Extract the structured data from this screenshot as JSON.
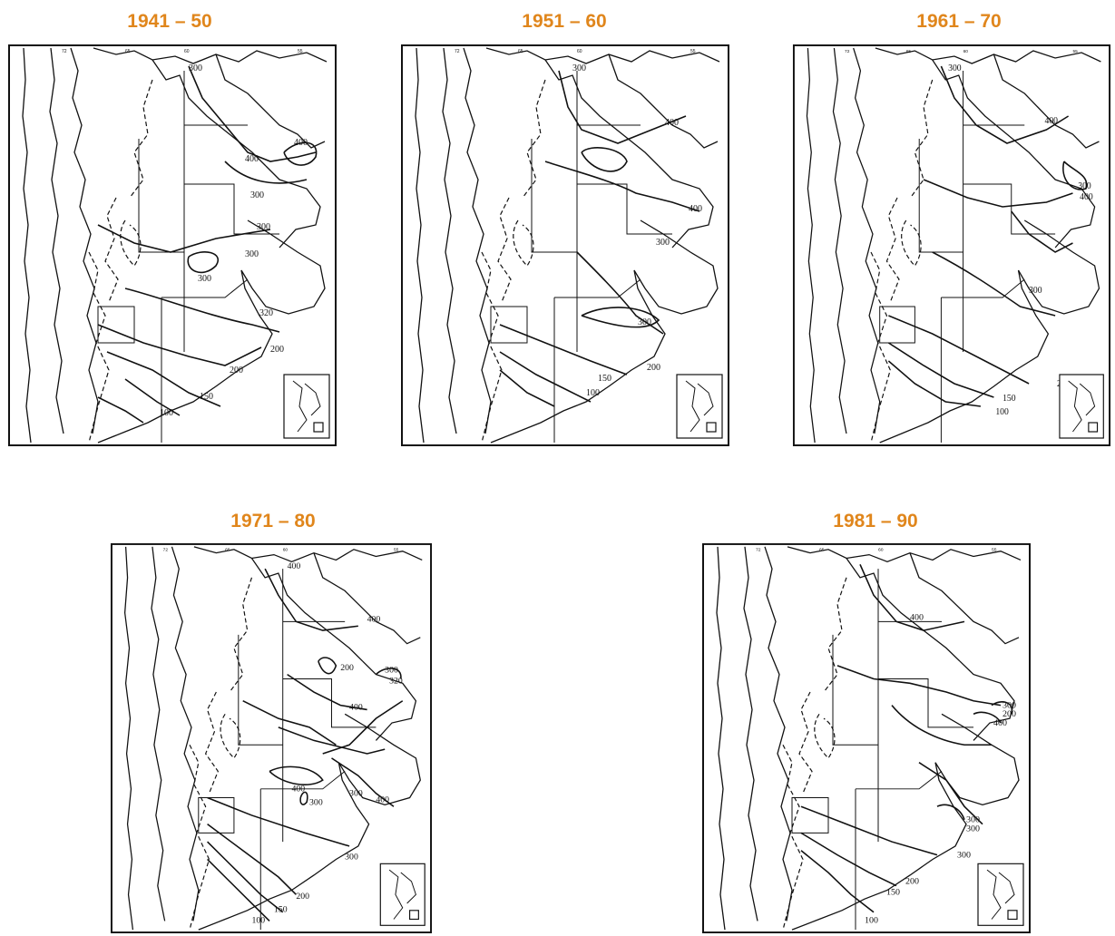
{
  "maps": [
    {
      "period": "1941 – 50",
      "labels": [
        "300",
        "400",
        "400",
        "300",
        "300",
        "300",
        "300",
        "320",
        "200",
        "200",
        "150",
        "100"
      ]
    },
    {
      "period": "1951 – 60",
      "labels": [
        "300",
        "400",
        "400",
        "300",
        "300",
        "200",
        "150",
        "100"
      ]
    },
    {
      "period": "1961 – 70",
      "labels": [
        "300",
        "400",
        "300",
        "400",
        "300",
        "200",
        "150",
        "100"
      ]
    },
    {
      "period": "1971 – 80",
      "labels": [
        "400",
        "400",
        "200",
        "320",
        "300",
        "400",
        "400",
        "300",
        "300",
        "400",
        "300",
        "200",
        "150",
        "100"
      ]
    },
    {
      "period": "1981 – 90",
      "labels": [
        "400",
        "300",
        "200",
        "400",
        "300",
        "300",
        "300",
        "200",
        "150",
        "100"
      ]
    }
  ],
  "colors": {
    "title": "#E0861C",
    "line": "#111111"
  }
}
